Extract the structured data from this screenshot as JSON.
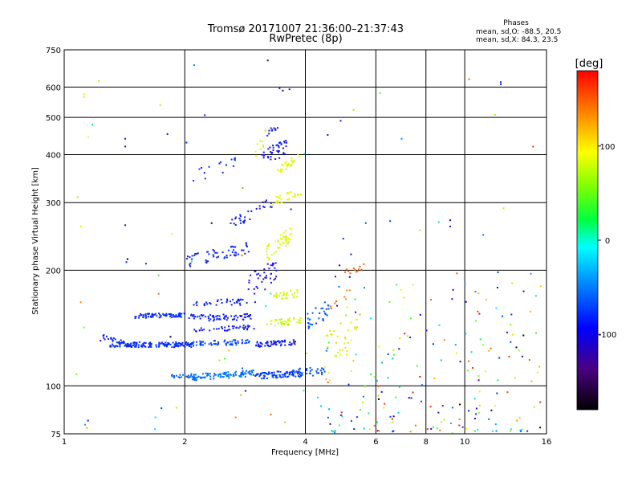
{
  "chart_data": {
    "type": "scatter",
    "title": "Tromsø 20171007 21:36:00–21:37:43",
    "subtitle": "RwPretec (8p)",
    "xlabel": "Frequency [MHz]",
    "ylabel": "Stationary phase Virtual Height [km]",
    "x_scale": "log",
    "y_scale": "log",
    "xlim": [
      1,
      16
    ],
    "ylim": [
      75,
      750
    ],
    "x_ticks": [
      "1",
      "2",
      "4",
      "6",
      "8",
      "10",
      "16"
    ],
    "y_ticks": [
      "75",
      "100",
      "200",
      "300",
      "400",
      "500",
      "600",
      "750"
    ],
    "grid": true,
    "info": {
      "heading": "Phases",
      "line_o": "mean, sd,O: -88.5, 20.5",
      "line_x": "mean, sd,X:  84.3, 23.5"
    },
    "colorbar": {
      "label": "[deg]",
      "ticks": [
        "100",
        "0",
        "-100"
      ],
      "tick_values": [
        100,
        0,
        -100
      ],
      "range": [
        -180,
        180
      ]
    },
    "clusters": [
      {
        "f0": 1.3,
        "f1": 2.1,
        "h0": 128,
        "h1": 128,
        "dh": 2,
        "phase": -110,
        "dp": 8,
        "n": 150
      },
      {
        "f0": 1.25,
        "f1": 1.45,
        "h0": 134,
        "h1": 128,
        "dh": 2,
        "phase": -112,
        "dp": 8,
        "n": 25
      },
      {
        "f0": 1.5,
        "f1": 2.0,
        "h0": 152,
        "h1": 153,
        "dh": 2,
        "phase": -112,
        "dp": 8,
        "n": 70
      },
      {
        "f0": 2.05,
        "f1": 2.6,
        "h0": 152,
        "h1": 150,
        "dh": 2,
        "phase": -115,
        "dp": 8,
        "n": 30
      },
      {
        "f0": 1.85,
        "f1": 2.15,
        "h0": 106,
        "h1": 106,
        "dh": 1.5,
        "phase": -88,
        "dp": 8,
        "n": 20
      },
      {
        "f0": 2.05,
        "f1": 3.0,
        "h0": 105,
        "h1": 108,
        "dh": 2,
        "phase": -85,
        "dp": 8,
        "n": 100
      },
      {
        "f0": 3.0,
        "f1": 3.9,
        "h0": 106,
        "h1": 108,
        "dh": 2,
        "phase": -105,
        "dp": 10,
        "n": 90
      },
      {
        "f0": 2.1,
        "f1": 2.9,
        "h0": 129,
        "h1": 130,
        "dh": 2,
        "phase": -100,
        "dp": 10,
        "n": 60
      },
      {
        "f0": 3.0,
        "f1": 3.8,
        "h0": 128,
        "h1": 130,
        "dh": 2,
        "phase": -118,
        "dp": 10,
        "n": 60
      },
      {
        "f0": 2.1,
        "f1": 3.0,
        "h0": 140,
        "h1": 142,
        "dh": 2,
        "phase": -118,
        "dp": 10,
        "n": 40
      },
      {
        "f0": 2.3,
        "f1": 3.0,
        "h0": 150,
        "h1": 152,
        "dh": 3,
        "phase": -118,
        "dp": 8,
        "n": 40
      },
      {
        "f0": 2.1,
        "f1": 3.0,
        "h0": 165,
        "h1": 165,
        "dh": 3,
        "phase": -115,
        "dp": 8,
        "n": 35
      },
      {
        "f0": 2.0,
        "f1": 2.9,
        "h0": 210,
        "h1": 230,
        "dh": 8,
        "phase": -115,
        "dp": 10,
        "n": 55
      },
      {
        "f0": 2.6,
        "f1": 3.3,
        "h0": 260,
        "h1": 300,
        "dh": 10,
        "phase": -118,
        "dp": 10,
        "n": 30
      },
      {
        "f0": 2.85,
        "f1": 3.4,
        "h0": 180,
        "h1": 200,
        "dh": 14,
        "phase": -125,
        "dp": 10,
        "n": 40
      },
      {
        "f0": 3.1,
        "f1": 3.6,
        "h0": 390,
        "h1": 420,
        "dh": 20,
        "phase": -120,
        "dp": 12,
        "n": 40
      },
      {
        "f0": 3.2,
        "f1": 3.5,
        "h0": 450,
        "h1": 490,
        "dh": 10,
        "phase": -120,
        "dp": 10,
        "n": 10
      },
      {
        "f0": 2.1,
        "f1": 2.7,
        "h0": 350,
        "h1": 380,
        "dh": 15,
        "phase": -110,
        "dp": 10,
        "n": 15
      },
      {
        "f0": 3.2,
        "f1": 3.9,
        "h0": 145,
        "h1": 148,
        "dh": 3,
        "phase": 75,
        "dp": 10,
        "n": 40
      },
      {
        "f0": 3.3,
        "f1": 3.9,
        "h0": 170,
        "h1": 175,
        "dh": 4,
        "phase": 82,
        "dp": 10,
        "n": 30
      },
      {
        "f0": 3.2,
        "f1": 3.7,
        "h0": 220,
        "h1": 250,
        "dh": 12,
        "phase": 85,
        "dp": 10,
        "n": 45
      },
      {
        "f0": 3.3,
        "f1": 3.9,
        "h0": 300,
        "h1": 320,
        "dh": 8,
        "phase": 88,
        "dp": 10,
        "n": 25
      },
      {
        "f0": 3.4,
        "f1": 3.9,
        "h0": 360,
        "h1": 400,
        "dh": 10,
        "phase": 90,
        "dp": 10,
        "n": 30
      },
      {
        "f0": 3.0,
        "f1": 3.2,
        "h0": 400,
        "h1": 450,
        "dh": 20,
        "phase": 80,
        "dp": 10,
        "n": 10
      },
      {
        "f0": 3.8,
        "f1": 4.5,
        "h0": 108,
        "h1": 110,
        "dh": 3,
        "phase": -100,
        "dp": 10,
        "n": 30
      },
      {
        "f0": 4.0,
        "f1": 4.6,
        "h0": 145,
        "h1": 160,
        "dh": 8,
        "phase": -95,
        "dp": 12,
        "n": 30
      },
      {
        "f0": 4.4,
        "f1": 5.4,
        "h0": 120,
        "h1": 140,
        "dh": 15,
        "phase": 90,
        "dp": 20,
        "n": 30
      },
      {
        "f0": 5.0,
        "f1": 5.6,
        "h0": 197,
        "h1": 205,
        "dh": 4,
        "phase": 150,
        "dp": 8,
        "n": 12
      },
      {
        "f0": 4.6,
        "f1": 5.2,
        "h0": 160,
        "h1": 175,
        "dh": 5,
        "phase": 145,
        "dp": 10,
        "n": 8
      },
      {
        "f0": 1.0,
        "f1": 16.0,
        "h0": 75,
        "h1": 750,
        "dh": 0,
        "phase": 0,
        "dp": 180,
        "n": 80,
        "sparse": true
      },
      {
        "f0": 4.5,
        "f1": 15.5,
        "h0": 76,
        "h1": 200,
        "dh": 0,
        "phase": 0,
        "dp": 180,
        "n": 180,
        "sparse": true
      }
    ],
    "points": [
      {
        "f": 1.22,
        "h": 622,
        "p": 70
      },
      {
        "f": 1.12,
        "h": 575,
        "p": 80
      },
      {
        "f": 1.12,
        "h": 565,
        "p": 75
      },
      {
        "f": 1.08,
        "h": 310,
        "p": 60
      },
      {
        "f": 1.1,
        "h": 260,
        "p": 80
      },
      {
        "f": 1.42,
        "h": 440,
        "p": -120
      },
      {
        "f": 1.42,
        "h": 420,
        "p": -120
      },
      {
        "f": 1.42,
        "h": 262,
        "p": -120
      },
      {
        "f": 1.43,
        "h": 210,
        "p": -110
      },
      {
        "f": 1.6,
        "h": 208,
        "p": -110
      },
      {
        "f": 3.45,
        "h": 595,
        "p": -110
      },
      {
        "f": 3.65,
        "h": 592,
        "p": -120
      },
      {
        "f": 2.02,
        "h": 430,
        "p": -110
      },
      {
        "f": 4.55,
        "h": 450,
        "p": -120
      },
      {
        "f": 4.9,
        "h": 490,
        "p": -120
      },
      {
        "f": 9.2,
        "h": 270,
        "p": -140
      },
      {
        "f": 9.2,
        "h": 260,
        "p": -140
      },
      {
        "f": 12.3,
        "h": 618,
        "p": -120
      },
      {
        "f": 12.3,
        "h": 610,
        "p": -110
      },
      {
        "f": 11.9,
        "h": 508,
        "p": 50
      },
      {
        "f": 12.5,
        "h": 290,
        "p": 70
      },
      {
        "f": 5.2,
        "h": 220,
        "p": -150
      },
      {
        "f": 1.1,
        "h": 165,
        "p": 140
      },
      {
        "f": 1.12,
        "h": 142,
        "p": 40
      }
    ]
  }
}
